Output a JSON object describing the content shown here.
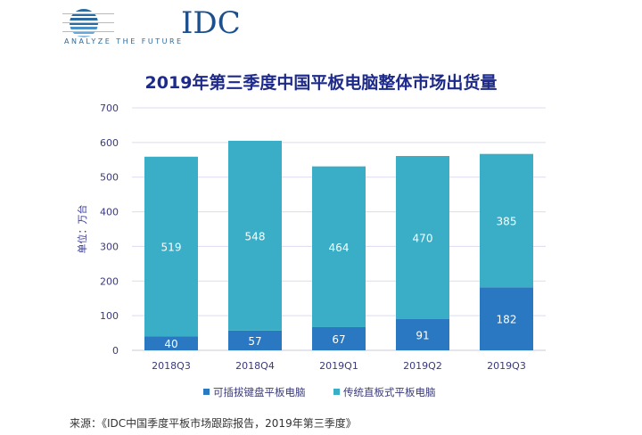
{
  "logo": {
    "name": "IDC",
    "tagline": "ANALYZE THE FUTURE"
  },
  "chart_data": {
    "type": "bar",
    "stacked": true,
    "title": "2019年第三季度中国平板电脑整体市场出货量",
    "ylabel": "单位：万台",
    "ylim": [
      0,
      700
    ],
    "yticks": [
      0,
      100,
      200,
      300,
      400,
      500,
      600,
      700
    ],
    "grid": true,
    "legend": "bottom",
    "categories": [
      "2018Q3",
      "2018Q4",
      "2019Q1",
      "2019Q2",
      "2019Q3"
    ],
    "series": [
      {
        "name": "可插拔键盘平板电脑",
        "values": [
          40,
          57,
          67,
          91,
          182
        ],
        "color": "#2a78c2"
      },
      {
        "name": "传统直板式平板电脑",
        "values": [
          519,
          548,
          464,
          470,
          385
        ],
        "color": "#3aaec6"
      }
    ]
  },
  "source": "来源：《IDC中国季度平板市场跟踪报告，2019年第三季度》"
}
